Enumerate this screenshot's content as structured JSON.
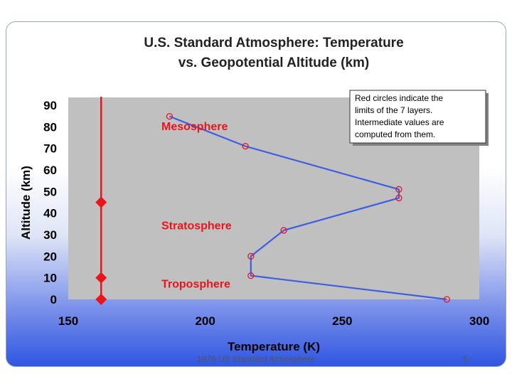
{
  "slide": {
    "footer_left": "1976 US Standard Atmosphere",
    "page_number": "5"
  },
  "chart_data": {
    "type": "line",
    "title": [
      "U.S. Standard Atmosphere: Temperature",
      "vs. Geopotential Altitude (km)"
    ],
    "xlabel": "Temperature (K)",
    "ylabel": "Altitude (km)",
    "xlim": [
      150,
      300
    ],
    "ylim": [
      0,
      90
    ],
    "xticks": [
      150,
      200,
      250,
      300
    ],
    "yticks": [
      0,
      10,
      20,
      30,
      40,
      50,
      60,
      70,
      80,
      90
    ],
    "grid": false,
    "series": [
      {
        "color": "#3b5fe0",
        "marker_color": "#e8151b",
        "points": [
          {
            "x": 288.15,
            "y": 0
          },
          {
            "x": 216.65,
            "y": 11
          },
          {
            "x": 216.65,
            "y": 20
          },
          {
            "x": 228.65,
            "y": 32
          },
          {
            "x": 270.65,
            "y": 47
          },
          {
            "x": 270.65,
            "y": 51
          },
          {
            "x": 214.65,
            "y": 71
          },
          {
            "x": 186.95,
            "y": 84.85
          }
        ]
      }
    ],
    "layer_boundary_line": {
      "x": 162,
      "y_range": [
        0,
        94
      ],
      "color": "#e8151b",
      "boundaries": [
        0,
        10,
        45
      ]
    },
    "layer_labels": [
      {
        "text": "Troposphere",
        "x": 184,
        "y": 5.5
      },
      {
        "text": "Stratosphere",
        "x": 184,
        "y": 32.5
      },
      {
        "text": "Mesosphere",
        "x": 184,
        "y": 78.5
      }
    ],
    "note": [
      "Red circles indicate the",
      "limits of the 7 layers.",
      "Intermediate values are",
      "computed from them."
    ],
    "plot_background": "#c0c0c0"
  }
}
